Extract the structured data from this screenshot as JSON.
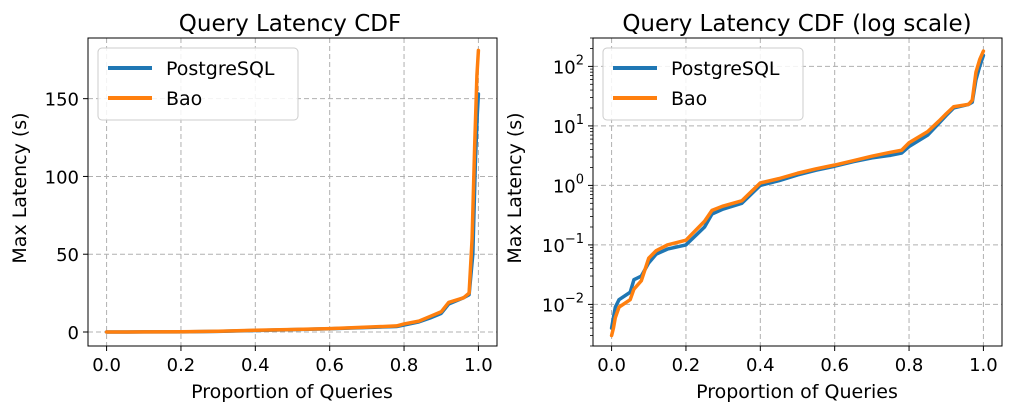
{
  "chart_data": [
    {
      "type": "line",
      "title": "Query Latency CDF",
      "xlabel": "Proportion of Queries",
      "ylabel": "Max Latency (s)",
      "xlim": [
        -0.05,
        1.05
      ],
      "ylim": [
        -9,
        189
      ],
      "yscale": "linear",
      "grid": true,
      "legend_position": "top-left",
      "xticks": [
        0.0,
        0.2,
        0.4,
        0.6,
        0.8,
        1.0
      ],
      "xtick_labels": [
        "0.0",
        "0.2",
        "0.4",
        "0.6",
        "0.8",
        "1.0"
      ],
      "yticks": [
        0,
        50,
        100,
        150
      ],
      "ytick_labels": [
        "0",
        "50",
        "100",
        "150"
      ],
      "series": [
        {
          "name": "PostgreSQL",
          "color": "#1f77b4",
          "points": [
            [
              0.0,
              0.004
            ],
            [
              0.1,
              0.05
            ],
            [
              0.2,
              0.1
            ],
            [
              0.3,
              0.4
            ],
            [
              0.4,
              1.0
            ],
            [
              0.5,
              1.5
            ],
            [
              0.6,
              2.1
            ],
            [
              0.7,
              2.9
            ],
            [
              0.78,
              3.5
            ],
            [
              0.8,
              4.5
            ],
            [
              0.84,
              6.5
            ],
            [
              0.87,
              9
            ],
            [
              0.9,
              12
            ],
            [
              0.92,
              18
            ],
            [
              0.96,
              22
            ],
            [
              0.975,
              24
            ],
            [
              0.985,
              50
            ],
            [
              0.992,
              110
            ],
            [
              0.997,
              140
            ],
            [
              1.0,
              153
            ]
          ]
        },
        {
          "name": "Bao",
          "color": "#ff7f0e",
          "points": [
            [
              0.0,
              0.003
            ],
            [
              0.1,
              0.06
            ],
            [
              0.2,
              0.12
            ],
            [
              0.3,
              0.45
            ],
            [
              0.4,
              1.1
            ],
            [
              0.5,
              1.6
            ],
            [
              0.6,
              2.2
            ],
            [
              0.7,
              3.1
            ],
            [
              0.78,
              3.9
            ],
            [
              0.8,
              5.2
            ],
            [
              0.84,
              7
            ],
            [
              0.87,
              10
            ],
            [
              0.9,
              13
            ],
            [
              0.92,
              19
            ],
            [
              0.96,
              22
            ],
            [
              0.975,
              25
            ],
            [
              0.983,
              60
            ],
            [
              0.99,
              120
            ],
            [
              0.996,
              165
            ],
            [
              1.0,
              181
            ]
          ]
        }
      ]
    },
    {
      "type": "line",
      "title": "Query Latency CDF (log scale)",
      "xlabel": "Proportion of Queries",
      "ylabel": "Max Latency (s)",
      "xlim": [
        -0.05,
        1.05
      ],
      "ylim": [
        0.002,
        300
      ],
      "yscale": "log",
      "grid": true,
      "legend_position": "top-left",
      "xticks": [
        0.0,
        0.2,
        0.4,
        0.6,
        0.8,
        1.0
      ],
      "xtick_labels": [
        "0.0",
        "0.2",
        "0.4",
        "0.6",
        "0.8",
        "1.0"
      ],
      "yticks": [
        0.01,
        0.1,
        1,
        10,
        100
      ],
      "ytick_labels": [
        {
          "base": "10",
          "exp": "−2"
        },
        {
          "base": "10",
          "exp": "−1"
        },
        {
          "base": "10",
          "exp": "0"
        },
        {
          "base": "10",
          "exp": "1"
        },
        {
          "base": "10",
          "exp": "2"
        }
      ],
      "series": [
        {
          "name": "PostgreSQL",
          "color": "#1f77b4",
          "points": [
            [
              0.0,
              0.004
            ],
            [
              0.005,
              0.006
            ],
            [
              0.01,
              0.009
            ],
            [
              0.02,
              0.012
            ],
            [
              0.05,
              0.016
            ],
            [
              0.06,
              0.026
            ],
            [
              0.08,
              0.03
            ],
            [
              0.1,
              0.05
            ],
            [
              0.12,
              0.07
            ],
            [
              0.15,
              0.085
            ],
            [
              0.2,
              0.1
            ],
            [
              0.25,
              0.2
            ],
            [
              0.27,
              0.33
            ],
            [
              0.3,
              0.4
            ],
            [
              0.35,
              0.5
            ],
            [
              0.4,
              1.0
            ],
            [
              0.45,
              1.2
            ],
            [
              0.5,
              1.5
            ],
            [
              0.55,
              1.8
            ],
            [
              0.6,
              2.1
            ],
            [
              0.65,
              2.5
            ],
            [
              0.7,
              2.9
            ],
            [
              0.75,
              3.2
            ],
            [
              0.78,
              3.5
            ],
            [
              0.8,
              4.5
            ],
            [
              0.85,
              7
            ],
            [
              0.88,
              11
            ],
            [
              0.9,
              15
            ],
            [
              0.92,
              20
            ],
            [
              0.96,
              23
            ],
            [
              0.97,
              25
            ],
            [
              0.98,
              60
            ],
            [
              0.99,
              100
            ],
            [
              1.0,
              153
            ]
          ]
        },
        {
          "name": "Bao",
          "color": "#ff7f0e",
          "points": [
            [
              0.0,
              0.003
            ],
            [
              0.005,
              0.004
            ],
            [
              0.01,
              0.006
            ],
            [
              0.02,
              0.009
            ],
            [
              0.05,
              0.012
            ],
            [
              0.06,
              0.018
            ],
            [
              0.08,
              0.025
            ],
            [
              0.1,
              0.06
            ],
            [
              0.12,
              0.08
            ],
            [
              0.15,
              0.1
            ],
            [
              0.2,
              0.12
            ],
            [
              0.25,
              0.25
            ],
            [
              0.27,
              0.38
            ],
            [
              0.3,
              0.45
            ],
            [
              0.35,
              0.55
            ],
            [
              0.4,
              1.1
            ],
            [
              0.45,
              1.3
            ],
            [
              0.5,
              1.6
            ],
            [
              0.55,
              1.9
            ],
            [
              0.6,
              2.2
            ],
            [
              0.65,
              2.6
            ],
            [
              0.7,
              3.1
            ],
            [
              0.75,
              3.6
            ],
            [
              0.78,
              3.9
            ],
            [
              0.8,
              5.2
            ],
            [
              0.85,
              8
            ],
            [
              0.88,
              12
            ],
            [
              0.9,
              16
            ],
            [
              0.92,
              21
            ],
            [
              0.96,
              23
            ],
            [
              0.97,
              27
            ],
            [
              0.98,
              80
            ],
            [
              0.99,
              130
            ],
            [
              1.0,
              181
            ]
          ]
        }
      ]
    }
  ]
}
